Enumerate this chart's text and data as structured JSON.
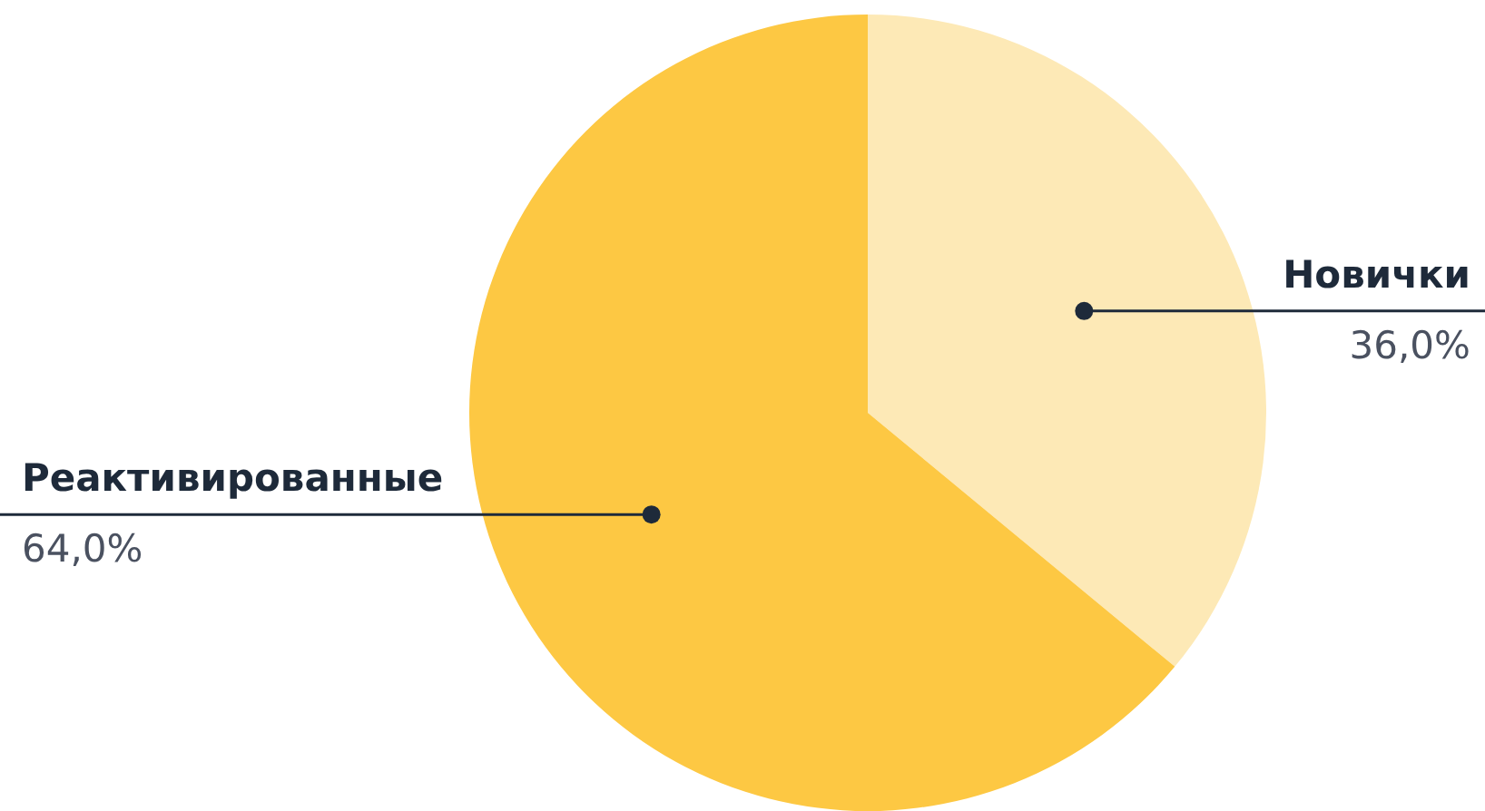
{
  "chart_data": {
    "type": "pie",
    "categories": [
      "Новички",
      "Реактивированные"
    ],
    "values": [
      36,
      64
    ],
    "colors": [
      "#fde9b6",
      "#fdc843"
    ],
    "value_labels": [
      "36,0%",
      "64,0%"
    ],
    "legend": false
  }
}
